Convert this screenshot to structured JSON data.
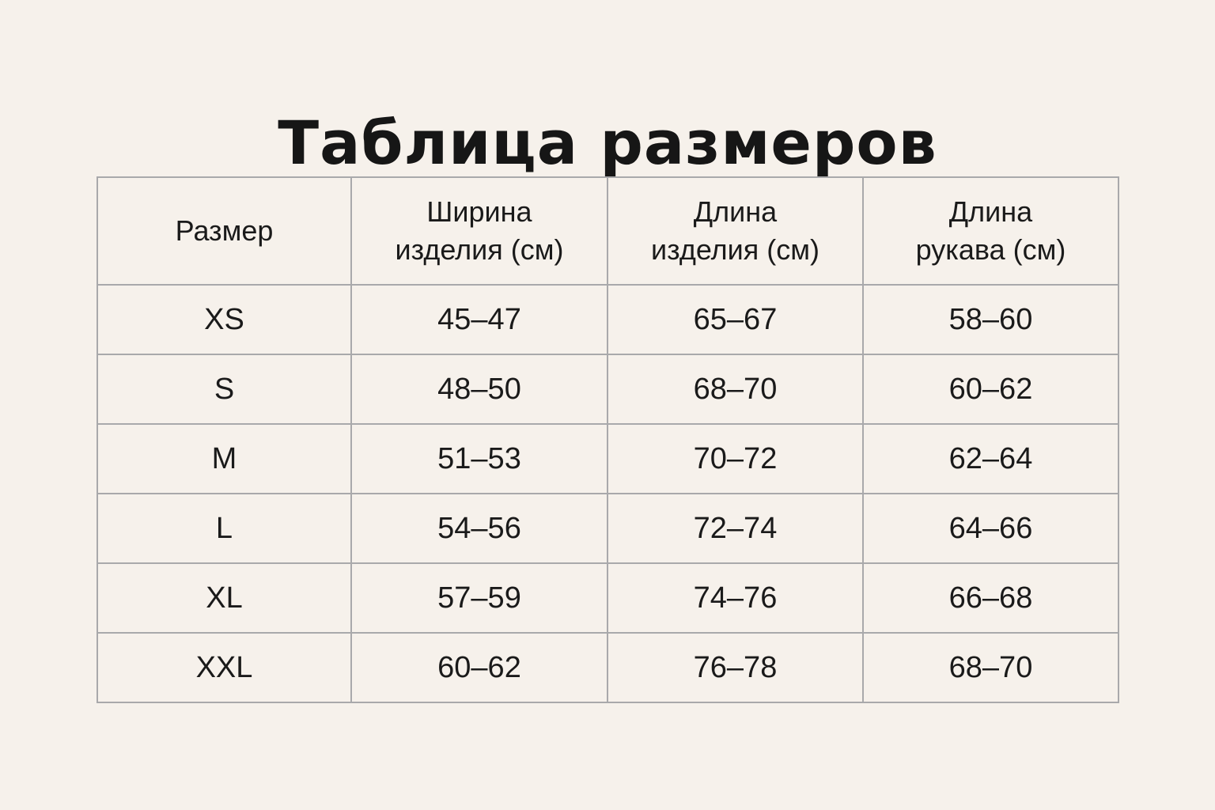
{
  "title": "Таблица размеров",
  "table": {
    "headers": [
      [
        "Размер"
      ],
      [
        "Ширина",
        "изделия (см)"
      ],
      [
        "Длина",
        "изделия (см)"
      ],
      [
        "Длина",
        "рукава (см)"
      ]
    ],
    "rows": [
      [
        "XS",
        "45–47",
        "65–67",
        "58–60"
      ],
      [
        "S",
        "48–50",
        "68–70",
        "60–62"
      ],
      [
        "M",
        "51–53",
        "70–72",
        "62–64"
      ],
      [
        "L",
        "54–56",
        "72–74",
        "64–66"
      ],
      [
        "XL",
        "57–59",
        "74–76",
        "66–68"
      ],
      [
        "XXL",
        "60–62",
        "76–78",
        "68–70"
      ]
    ]
  },
  "colors": {
    "background": "#f6f1eb",
    "text": "#1a1a1a",
    "border": "#a9a9ab"
  }
}
